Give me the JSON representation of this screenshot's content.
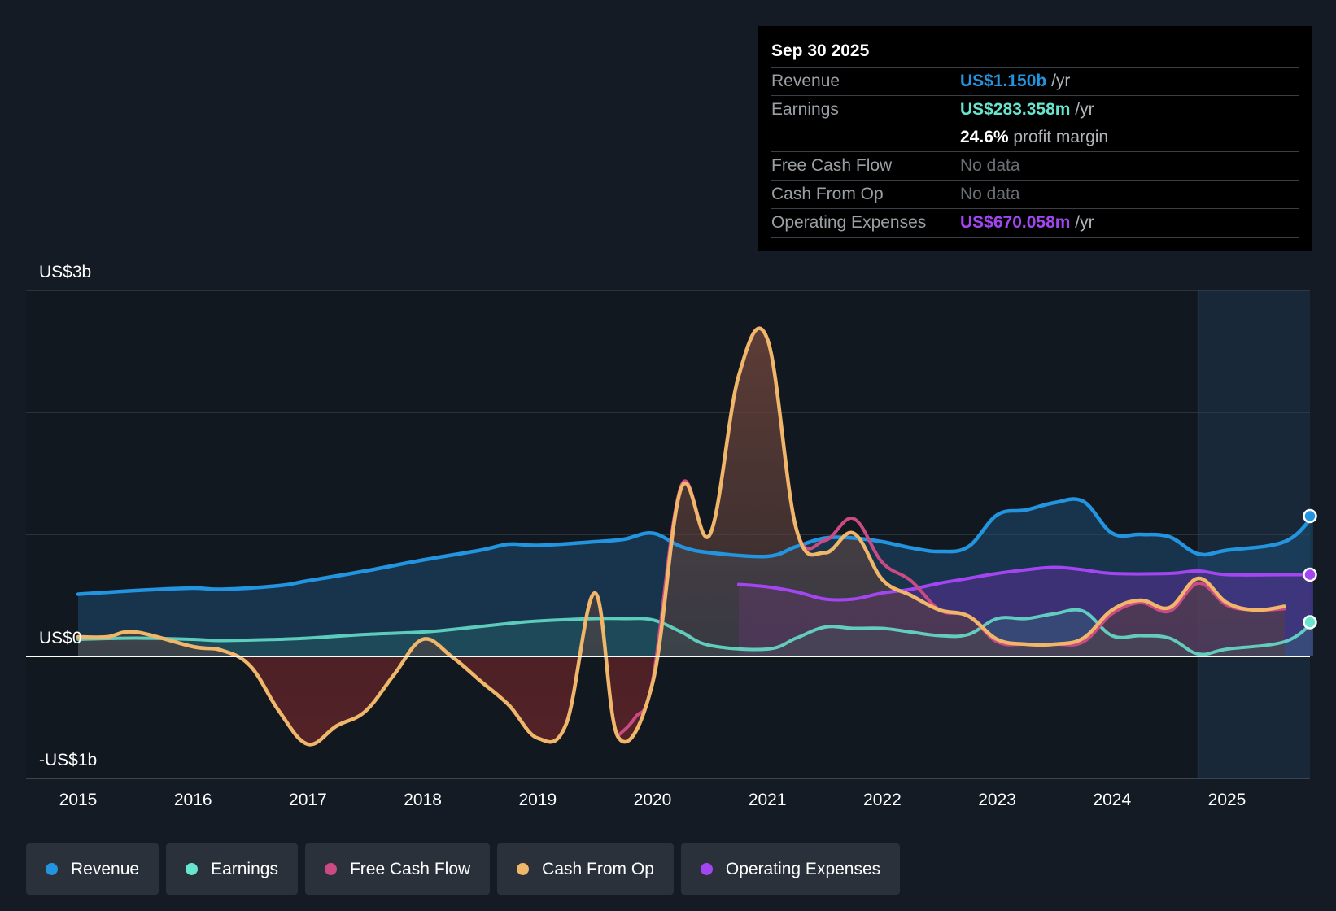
{
  "colors": {
    "revenue": "#2394df",
    "earnings": "#68e5cf",
    "free_cash_flow": "#cc4a84",
    "cash_from_op": "#f0b66a",
    "operating_expenses": "#a346f2",
    "background": "#151b24"
  },
  "tooltip": {
    "date": "Sep 30 2025",
    "rows": [
      {
        "label": "Revenue",
        "value": "US$1.150b",
        "unit": " /yr"
      },
      {
        "label": "Earnings",
        "value": "US$283.358m",
        "unit": " /yr"
      },
      {
        "label": "",
        "value": "24.6%",
        "unit": " profit margin"
      },
      {
        "label": "Free Cash Flow",
        "value": "No data",
        "unit": ""
      },
      {
        "label": "Cash From Op",
        "value": "No data",
        "unit": ""
      },
      {
        "label": "Operating Expenses",
        "value": "US$670.058m",
        "unit": " /yr"
      }
    ]
  },
  "legend": [
    {
      "label": "Revenue",
      "color": "#2394df"
    },
    {
      "label": "Earnings",
      "color": "#68e5cf"
    },
    {
      "label": "Free Cash Flow",
      "color": "#cc4a84"
    },
    {
      "label": "Cash From Op",
      "color": "#f0b66a"
    },
    {
      "label": "Operating Expenses",
      "color": "#a346f2"
    }
  ],
  "chart_data": {
    "type": "area",
    "title": "",
    "xlabel": "",
    "ylabel": "",
    "ylim": [
      -1.0,
      3.0
    ],
    "x_range": [
      2014.55,
      2025.75
    ],
    "y_tick_labels": [
      {
        "value": 3.0,
        "label": "US$3b"
      },
      {
        "value": 0.0,
        "label": "US$0"
      },
      {
        "value": -1.0,
        "label": "-US$1b"
      }
    ],
    "gridlines": [
      3.0,
      2.0,
      1.0,
      0.0
    ],
    "x_ticks": [
      {
        "value": 2015,
        "label": "2015"
      },
      {
        "value": 2016,
        "label": "2016"
      },
      {
        "value": 2017,
        "label": "2017"
      },
      {
        "value": 2018,
        "label": "2018"
      },
      {
        "value": 2019,
        "label": "2019"
      },
      {
        "value": 2020,
        "label": "2020"
      },
      {
        "value": 2021,
        "label": "2021"
      },
      {
        "value": 2022,
        "label": "2022"
      },
      {
        "value": 2023,
        "label": "2023"
      },
      {
        "value": 2024,
        "label": "2024"
      },
      {
        "value": 2025,
        "label": "2025"
      }
    ],
    "forecast_start": 2024.75,
    "series": [
      {
        "name": "Revenue",
        "key": "revenue",
        "points": [
          [
            2015,
            0.51
          ],
          [
            2015.5,
            0.54
          ],
          [
            2016,
            0.56
          ],
          [
            2016.25,
            0.55
          ],
          [
            2016.75,
            0.58
          ],
          [
            2017,
            0.62
          ],
          [
            2017.5,
            0.7
          ],
          [
            2018,
            0.79
          ],
          [
            2018.5,
            0.87
          ],
          [
            2018.75,
            0.92
          ],
          [
            2019,
            0.91
          ],
          [
            2019.5,
            0.94
          ],
          [
            2019.75,
            0.96
          ],
          [
            2020,
            1.01
          ],
          [
            2020.25,
            0.9
          ],
          [
            2020.5,
            0.85
          ],
          [
            2021,
            0.82
          ],
          [
            2021.25,
            0.9
          ],
          [
            2021.5,
            0.97
          ],
          [
            2021.75,
            0.97
          ],
          [
            2022,
            0.94
          ],
          [
            2022.25,
            0.89
          ],
          [
            2022.5,
            0.86
          ],
          [
            2022.75,
            0.9
          ],
          [
            2023,
            1.16
          ],
          [
            2023.25,
            1.2
          ],
          [
            2023.5,
            1.26
          ],
          [
            2023.75,
            1.27
          ],
          [
            2024,
            1.01
          ],
          [
            2024.25,
            1.0
          ],
          [
            2024.5,
            0.98
          ],
          [
            2024.75,
            0.84
          ],
          [
            2025,
            0.87
          ],
          [
            2025.5,
            0.94
          ],
          [
            2025.75,
            1.15
          ]
        ],
        "end_marker": true
      },
      {
        "name": "Earnings",
        "key": "earnings",
        "points": [
          [
            2015,
            0.14
          ],
          [
            2015.5,
            0.15
          ],
          [
            2016,
            0.14
          ],
          [
            2016.25,
            0.13
          ],
          [
            2016.75,
            0.14
          ],
          [
            2017,
            0.15
          ],
          [
            2017.5,
            0.18
          ],
          [
            2018,
            0.2
          ],
          [
            2018.25,
            0.22
          ],
          [
            2018.75,
            0.27
          ],
          [
            2019,
            0.29
          ],
          [
            2019.5,
            0.31
          ],
          [
            2019.75,
            0.31
          ],
          [
            2020,
            0.3
          ],
          [
            2020.25,
            0.2
          ],
          [
            2020.5,
            0.09
          ],
          [
            2021,
            0.06
          ],
          [
            2021.25,
            0.15
          ],
          [
            2021.5,
            0.24
          ],
          [
            2021.75,
            0.23
          ],
          [
            2022,
            0.23
          ],
          [
            2022.25,
            0.2
          ],
          [
            2022.5,
            0.17
          ],
          [
            2022.75,
            0.18
          ],
          [
            2023,
            0.31
          ],
          [
            2023.25,
            0.31
          ],
          [
            2023.5,
            0.35
          ],
          [
            2023.75,
            0.37
          ],
          [
            2024,
            0.17
          ],
          [
            2024.25,
            0.17
          ],
          [
            2024.5,
            0.15
          ],
          [
            2024.75,
            0.02
          ],
          [
            2025,
            0.06
          ],
          [
            2025.5,
            0.12
          ],
          [
            2025.75,
            0.28
          ]
        ],
        "end_marker": true
      },
      {
        "name": "Operating Expenses",
        "key": "operating_expenses",
        "points": [
          [
            2020.75,
            0.59
          ],
          [
            2021,
            0.57
          ],
          [
            2021.25,
            0.53
          ],
          [
            2021.5,
            0.47
          ],
          [
            2021.75,
            0.47
          ],
          [
            2022,
            0.52
          ],
          [
            2022.25,
            0.55
          ],
          [
            2022.5,
            0.6
          ],
          [
            2022.75,
            0.64
          ],
          [
            2023,
            0.68
          ],
          [
            2023.25,
            0.71
          ],
          [
            2023.5,
            0.73
          ],
          [
            2023.75,
            0.71
          ],
          [
            2024,
            0.68
          ],
          [
            2024.5,
            0.68
          ],
          [
            2024.75,
            0.7
          ],
          [
            2025,
            0.67
          ],
          [
            2025.5,
            0.67
          ],
          [
            2025.75,
            0.67
          ]
        ],
        "end_marker": true
      },
      {
        "name": "Free Cash Flow",
        "key": "free_cash_flow",
        "points": [
          [
            2019.7,
            -0.65
          ],
          [
            2019.85,
            -0.5
          ],
          [
            2020,
            -0.2
          ],
          [
            2020.25,
            1.4
          ],
          [
            2020.5,
            1.0
          ],
          [
            2020.75,
            2.3
          ],
          [
            2021,
            2.6
          ],
          [
            2021.25,
            1.05
          ],
          [
            2021.5,
            0.95
          ],
          [
            2021.75,
            1.13
          ],
          [
            2022,
            0.77
          ],
          [
            2022.25,
            0.62
          ],
          [
            2022.5,
            0.38
          ],
          [
            2022.75,
            0.33
          ],
          [
            2023,
            0.12
          ],
          [
            2023.25,
            0.1
          ],
          [
            2023.5,
            0.1
          ],
          [
            2023.75,
            0.12
          ],
          [
            2024,
            0.35
          ],
          [
            2024.25,
            0.44
          ],
          [
            2024.5,
            0.37
          ],
          [
            2024.75,
            0.6
          ],
          [
            2025,
            0.42
          ],
          [
            2025.25,
            0.38
          ],
          [
            2025.5,
            0.39
          ]
        ],
        "end_marker": false
      },
      {
        "name": "Cash From Op",
        "key": "cash_from_op",
        "points": [
          [
            2015,
            0.16
          ],
          [
            2015.25,
            0.16
          ],
          [
            2015.5,
            0.2
          ],
          [
            2016,
            0.08
          ],
          [
            2016.25,
            0.05
          ],
          [
            2016.5,
            -0.08
          ],
          [
            2016.75,
            -0.45
          ],
          [
            2017,
            -0.72
          ],
          [
            2017.25,
            -0.57
          ],
          [
            2017.5,
            -0.45
          ],
          [
            2017.75,
            -0.15
          ],
          [
            2018,
            0.14
          ],
          [
            2018.25,
            0.0
          ],
          [
            2018.5,
            -0.2
          ],
          [
            2018.75,
            -0.4
          ],
          [
            2019,
            -0.67
          ],
          [
            2019.25,
            -0.55
          ],
          [
            2019.5,
            0.52
          ],
          [
            2019.7,
            -0.66
          ],
          [
            2020,
            -0.22
          ],
          [
            2020.25,
            1.38
          ],
          [
            2020.5,
            1.0
          ],
          [
            2020.75,
            2.3
          ],
          [
            2021,
            2.6
          ],
          [
            2021.25,
            1.05
          ],
          [
            2021.5,
            0.85
          ],
          [
            2021.75,
            1.01
          ],
          [
            2022,
            0.63
          ],
          [
            2022.25,
            0.5
          ],
          [
            2022.5,
            0.38
          ],
          [
            2022.75,
            0.33
          ],
          [
            2023,
            0.14
          ],
          [
            2023.25,
            0.1
          ],
          [
            2023.5,
            0.1
          ],
          [
            2023.75,
            0.15
          ],
          [
            2024,
            0.38
          ],
          [
            2024.25,
            0.46
          ],
          [
            2024.5,
            0.4
          ],
          [
            2024.75,
            0.64
          ],
          [
            2025,
            0.44
          ],
          [
            2025.25,
            0.38
          ],
          [
            2025.5,
            0.41
          ]
        ],
        "end_marker": false
      }
    ]
  }
}
